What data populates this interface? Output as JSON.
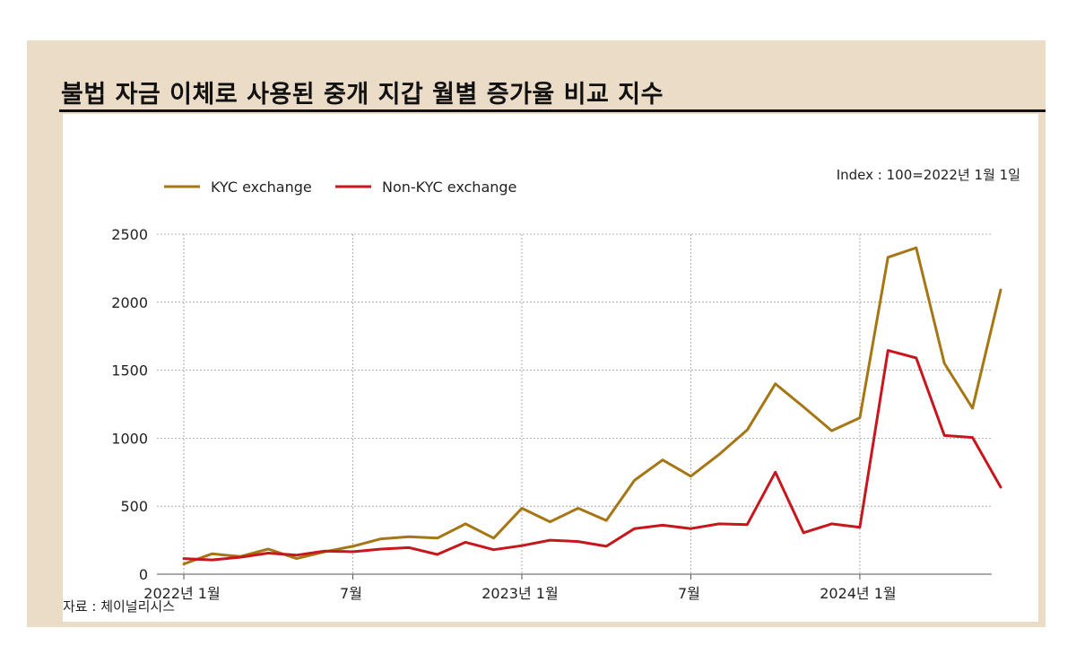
{
  "title": "불법 자금 이체로 사용된 중개 지갑 월별 증가율 비교 지수",
  "index_note": "Index : 100=2022년 1월 1일",
  "source": "자료 : 체이널리시스",
  "colors": {
    "kyc": "#a67614",
    "non_kyc": "#c8161d",
    "frame": "#eadcc6",
    "title_rule": "#111111"
  },
  "chart_data": {
    "type": "line",
    "title": "불법 자금 이체로 사용된 중개 지갑 월별 증가율 비교 지수",
    "xlabel": "",
    "ylabel": "",
    "ylim": [
      0,
      2500
    ],
    "yticks": [
      0,
      500,
      1000,
      1500,
      2000,
      2500
    ],
    "x": [
      "2022-01",
      "2022-02",
      "2022-03",
      "2022-04",
      "2022-05",
      "2022-06",
      "2022-07",
      "2022-08",
      "2022-09",
      "2022-10",
      "2022-11",
      "2022-12",
      "2023-01",
      "2023-02",
      "2023-03",
      "2023-04",
      "2023-05",
      "2023-06",
      "2023-07",
      "2023-08",
      "2023-09",
      "2023-10",
      "2023-11",
      "2023-12",
      "2024-01",
      "2024-02",
      "2024-03",
      "2024-04",
      "2024-05",
      "2024-06"
    ],
    "x_tick_labels": [
      {
        "x": "2022-01",
        "label": "2022년 1월"
      },
      {
        "x": "2022-07",
        "label": "7월"
      },
      {
        "x": "2023-01",
        "label": "2023년 1월"
      },
      {
        "x": "2023-07",
        "label": "7월"
      },
      {
        "x": "2024-01",
        "label": "2024년 1월"
      }
    ],
    "grid": true,
    "legend_position": "top-left",
    "series": [
      {
        "name": "KYC exchange",
        "color": "#a67614",
        "values": [
          75,
          150,
          130,
          185,
          115,
          165,
          205,
          260,
          275,
          265,
          370,
          265,
          485,
          385,
          485,
          395,
          690,
          840,
          720,
          880,
          1060,
          1400,
          1230,
          1055,
          1150,
          2330,
          2400,
          1550,
          1220,
          2090
        ]
      },
      {
        "name": "Non-KYC exchange",
        "color": "#c8161d",
        "values": [
          115,
          105,
          125,
          155,
          140,
          170,
          165,
          185,
          195,
          145,
          235,
          180,
          210,
          250,
          240,
          205,
          335,
          360,
          335,
          370,
          365,
          750,
          305,
          370,
          345,
          1645,
          1590,
          1020,
          1005,
          640
        ]
      }
    ]
  }
}
